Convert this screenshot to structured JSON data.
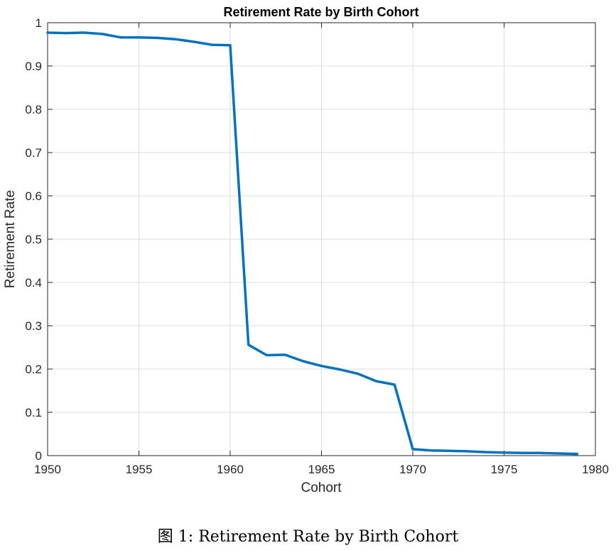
{
  "chart_data": {
    "type": "line",
    "title": "Retirement Rate by Birth Cohort",
    "xlabel": "Cohort",
    "ylabel": "Retirement Rate",
    "xlim": [
      1950,
      1980
    ],
    "ylim": [
      0,
      1
    ],
    "xticks": [
      "1950",
      "1955",
      "1960",
      "1965",
      "1970",
      "1975",
      "1980"
    ],
    "yticks": [
      "0",
      "0.1",
      "0.2",
      "0.3",
      "0.4",
      "0.5",
      "0.6",
      "0.7",
      "0.8",
      "0.9",
      "1"
    ],
    "grid": true,
    "series": [
      {
        "color": "#0072BD",
        "x": [
          1950,
          1951,
          1952,
          1953,
          1954,
          1955,
          1956,
          1957,
          1958,
          1959,
          1960,
          1961,
          1962,
          1963,
          1964,
          1965,
          1966,
          1967,
          1968,
          1969,
          1970,
          1971,
          1972,
          1973,
          1974,
          1975,
          1976,
          1977,
          1978,
          1979
        ],
        "values": [
          0.977,
          0.976,
          0.977,
          0.974,
          0.966,
          0.966,
          0.965,
          0.962,
          0.956,
          0.949,
          0.948,
          0.256,
          0.232,
          0.233,
          0.218,
          0.207,
          0.199,
          0.189,
          0.172,
          0.164,
          0.015,
          0.012,
          0.011,
          0.01,
          0.008,
          0.007,
          0.006,
          0.006,
          0.005,
          0.004
        ]
      }
    ]
  },
  "caption": {
    "label": "图 1:",
    "text": "Retirement Rate by Birth Cohort"
  }
}
